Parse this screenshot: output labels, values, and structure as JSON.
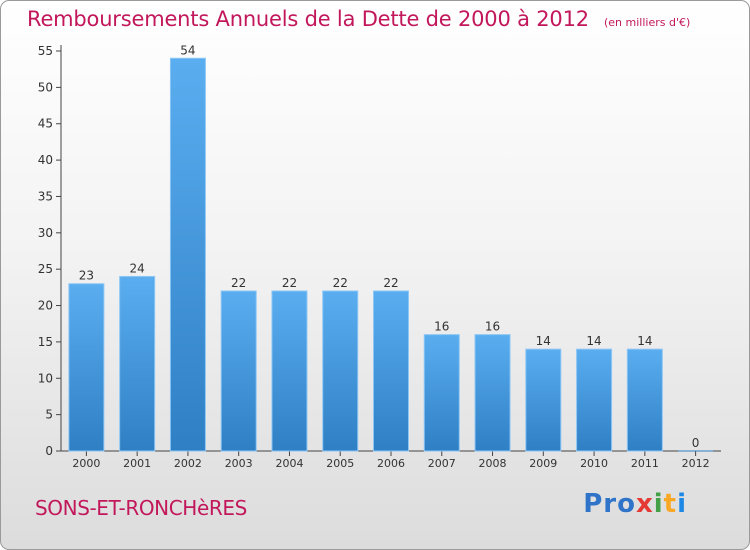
{
  "title": "Remboursements Annuels de la Dette de 2000 à 2012",
  "subtitle": "(en milliers d'€)",
  "commune": "SONS-ET-RONCHèRES",
  "brand": {
    "p1": "Pro",
    "p2": "x",
    "p3": "i",
    "p4": "t",
    "p5": "i"
  },
  "colors": {
    "title": "#c2185b",
    "bar_top": "#5aaef0",
    "bar_bottom": "#2f7fc4",
    "axis": "#444444",
    "grid": "#dddddd"
  },
  "chart_data": {
    "type": "bar",
    "title": "Remboursements Annuels de la Dette de 2000 à 2012",
    "subtitle": "(en milliers d'€)",
    "categories": [
      "2000",
      "2001",
      "2002",
      "2003",
      "2004",
      "2005",
      "2006",
      "2007",
      "2008",
      "2009",
      "2010",
      "2011",
      "2012"
    ],
    "values": [
      23,
      24,
      54,
      22,
      22,
      22,
      22,
      16,
      16,
      14,
      14,
      14,
      0
    ],
    "ylim": [
      0,
      55
    ],
    "yticks": [
      0,
      5,
      10,
      15,
      20,
      25,
      30,
      35,
      40,
      45,
      50,
      55
    ],
    "xlabel": "",
    "ylabel": "",
    "grid": false,
    "legend": "none"
  }
}
